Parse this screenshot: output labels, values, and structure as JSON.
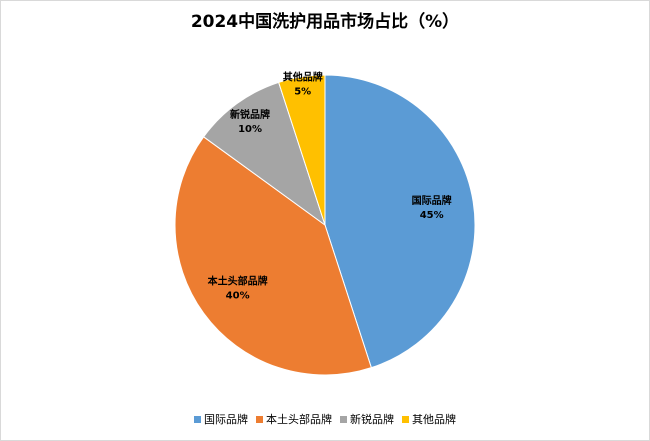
{
  "chart_data": {
    "type": "pie",
    "title": "2024中国洗护用品市场占比（%）",
    "categories": [
      "国际品牌",
      "本土头部品牌",
      "新锐品牌",
      "其他品牌"
    ],
    "values": [
      45,
      40,
      10,
      5
    ],
    "value_labels": [
      "45%",
      "40%",
      "10%",
      "5%"
    ],
    "colors": [
      "#5b9bd5",
      "#ed7d31",
      "#a5a5a5",
      "#ffc000"
    ],
    "legend": "bottom"
  }
}
